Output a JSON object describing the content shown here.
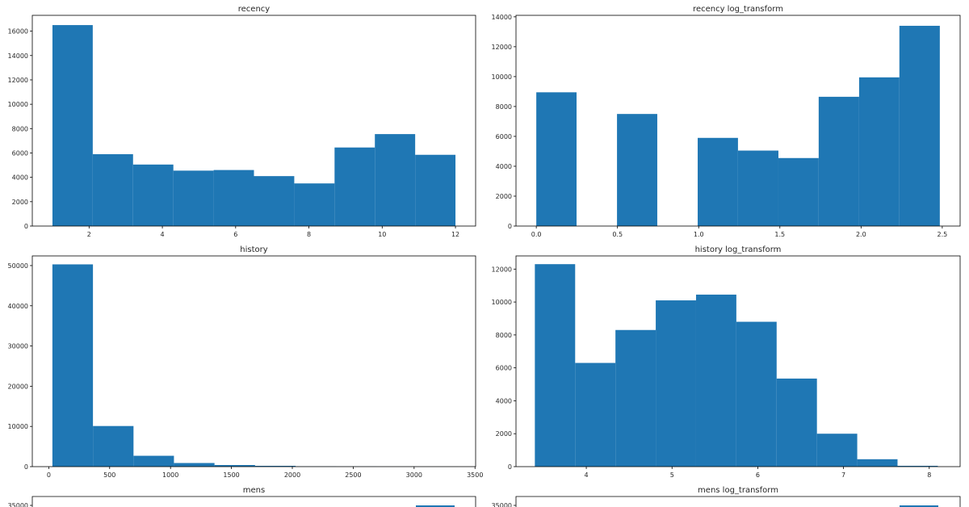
{
  "colors": {
    "bar": "#1f77b4",
    "axes": "#000000",
    "background": "#ffffff"
  },
  "chart_data": [
    {
      "type": "bar",
      "title": "recency",
      "xlabel": "",
      "ylabel": "",
      "xlim": [
        0.45,
        12.55
      ],
      "ylim": [
        0,
        17300
      ],
      "bin_edges": [
        1,
        2.1,
        3.2,
        4.3,
        5.4,
        6.5,
        7.6,
        8.7,
        9.8,
        10.9,
        12
      ],
      "values": [
        16500,
        5900,
        5050,
        4550,
        4600,
        4100,
        3500,
        6450,
        7550,
        5850
      ],
      "xticks": [
        2,
        4,
        6,
        8,
        10,
        12
      ],
      "xtick_labels": [
        "2",
        "4",
        "6",
        "8",
        "10",
        "12"
      ],
      "yticks": [
        0,
        2000,
        4000,
        6000,
        8000,
        10000,
        12000,
        14000,
        16000
      ],
      "ytick_labels": [
        "0",
        "2000",
        "4000",
        "6000",
        "8000",
        "10000",
        "12000",
        "14000",
        "16000"
      ]
    },
    {
      "type": "bar",
      "title": "recency log_transform",
      "xlabel": "",
      "ylabel": "",
      "xlim": [
        -0.125,
        2.61
      ],
      "ylim": [
        0,
        14100
      ],
      "bin_edges": [
        0,
        0.248,
        0.497,
        0.745,
        0.994,
        1.242,
        1.491,
        1.739,
        1.988,
        2.236,
        2.485
      ],
      "values": [
        8950,
        0,
        7500,
        0,
        5900,
        5050,
        4550,
        8650,
        9950,
        13400
      ],
      "xticks": [
        0,
        0.5,
        1.0,
        1.5,
        2.0,
        2.5
      ],
      "xtick_labels": [
        "0.0",
        "0.5",
        "1.0",
        "1.5",
        "2.0",
        "2.5"
      ],
      "yticks": [
        0,
        2000,
        4000,
        6000,
        8000,
        10000,
        12000,
        14000
      ],
      "ytick_labels": [
        "0",
        "2000",
        "4000",
        "6000",
        "8000",
        "10000",
        "12000",
        "14000"
      ]
    },
    {
      "type": "bar",
      "title": "history",
      "xlabel": "",
      "ylabel": "",
      "xlim": [
        -135,
        3505
      ],
      "ylim": [
        0,
        52400
      ],
      "bin_edges": [
        30,
        363,
        696,
        1028,
        1361,
        1694,
        2027,
        2360,
        2692,
        3025,
        3358
      ],
      "values": [
        50300,
        10100,
        2700,
        900,
        400,
        200,
        60,
        30,
        15,
        10
      ],
      "xticks": [
        0,
        500,
        1000,
        1500,
        2000,
        2500,
        3000,
        3500
      ],
      "xtick_labels": [
        "0",
        "500",
        "1000",
        "1500",
        "2000",
        "2500",
        "3000",
        "3500"
      ],
      "yticks": [
        0,
        10000,
        20000,
        30000,
        40000,
        50000
      ],
      "ytick_labels": [
        "0",
        "10000",
        "20000",
        "30000",
        "40000",
        "50000"
      ]
    },
    {
      "type": "bar",
      "title": "history log_transform",
      "xlabel": "",
      "ylabel": "",
      "xlim": [
        3.18,
        8.36
      ],
      "ylim": [
        0,
        12800
      ],
      "bin_edges": [
        3.4,
        3.87,
        4.34,
        4.81,
        5.28,
        5.75,
        6.22,
        6.69,
        7.16,
        7.63,
        8.1
      ],
      "values": [
        12300,
        6300,
        8300,
        10100,
        10450,
        8800,
        5350,
        2000,
        450,
        50
      ],
      "xticks": [
        4,
        5,
        6,
        7,
        8
      ],
      "xtick_labels": [
        "4",
        "5",
        "6",
        "7",
        "8"
      ],
      "yticks": [
        0,
        2000,
        4000,
        6000,
        8000,
        10000,
        12000
      ],
      "ytick_labels": [
        "0",
        "2000",
        "4000",
        "6000",
        "8000",
        "10000",
        "12000"
      ]
    },
    {
      "type": "bar",
      "title": "mens",
      "xlabel": "",
      "ylabel": "",
      "ytick_labels": [
        "35000"
      ]
    },
    {
      "type": "bar",
      "title": "mens log_transform",
      "xlabel": "",
      "ylabel": "",
      "ytick_labels": [
        "35000"
      ]
    }
  ]
}
